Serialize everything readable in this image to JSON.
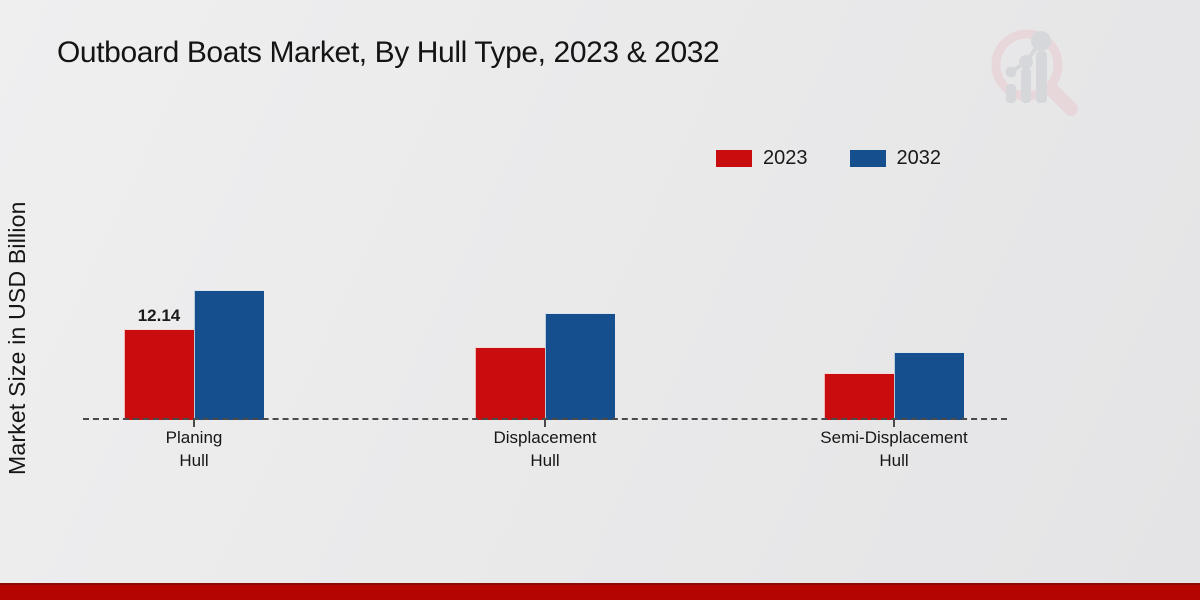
{
  "title": "Outboard Boats Market, By Hull Type, 2023 & 2032",
  "y_axis": {
    "label": "Market Size in USD Billion"
  },
  "legend": {
    "items": [
      {
        "label": "2023",
        "color": "#c90d0e"
      },
      {
        "label": "2032",
        "color": "#164f8e"
      }
    ]
  },
  "watermark_icon": "magnifier-bar-chart-logo",
  "footer": {
    "accent_color": "#b40500"
  },
  "chart_data": {
    "type": "bar",
    "title": "Outboard Boats Market, By Hull Type, 2023 & 2032",
    "xlabel": "",
    "ylabel": "Market Size in USD Billion",
    "categories": [
      "Planing\nHull",
      "Displacement\nHull",
      "Semi-Displacement\nHull"
    ],
    "series": [
      {
        "name": "2023",
        "color": "#c90d0e",
        "values": [
          12.14,
          9.74,
          6.27
        ],
        "bar_labels": [
          "12.14",
          "",
          ""
        ]
      },
      {
        "name": "2032",
        "color": "#164f8e",
        "values": [
          17.34,
          14.27,
          9.07
        ],
        "bar_labels": [
          "",
          "",
          ""
        ]
      }
    ],
    "ylim": [
      0,
      20
    ],
    "grid": false,
    "legend_position": "top-right",
    "baseline_style": "dashed",
    "bar_value_label_note": "only first 2023 bar is labeled"
  }
}
